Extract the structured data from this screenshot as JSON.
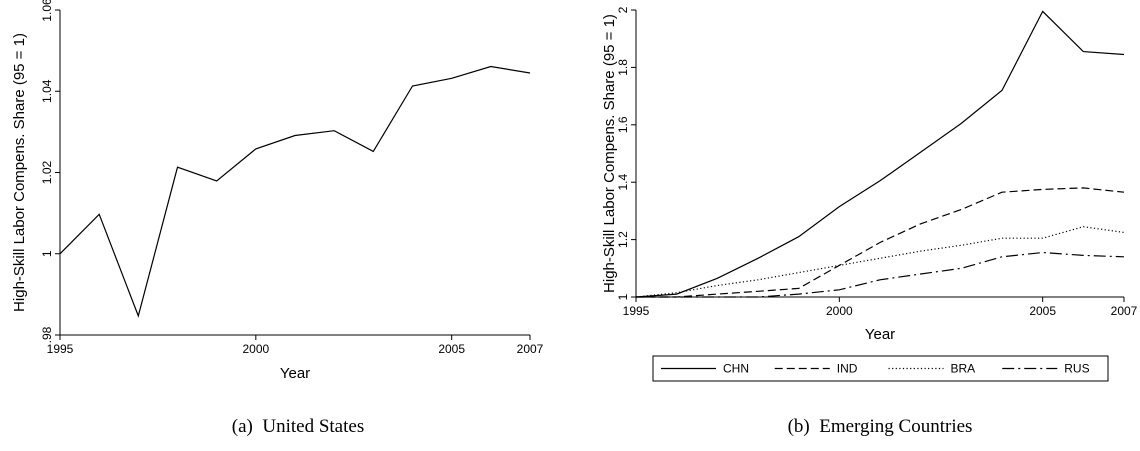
{
  "chart_data": [
    {
      "type": "line",
      "caption": "(a)  United States",
      "xlabel": "Year",
      "ylabel": "High-Skill Labor Compens. Share (95 = 1)",
      "xlim": [
        1995,
        2007
      ],
      "ylim": [
        0.98,
        1.06
      ],
      "xticks": [
        "1995",
        "2000",
        "2005",
        "2007"
      ],
      "yticks": [
        ".98",
        "1",
        "1.02",
        "1.04",
        "1.06"
      ],
      "grid": false,
      "x": [
        1995,
        1996,
        1997,
        1998,
        1999,
        2000,
        2001,
        2002,
        2003,
        2004,
        2005,
        2006,
        2007
      ],
      "series": [
        {
          "values": [
            1.0,
            1.0097,
            0.9847,
            1.0213,
            1.0179,
            1.0258,
            1.0291,
            1.0303,
            1.0252,
            1.0413,
            1.0432,
            1.0461,
            1.0445
          ]
        }
      ]
    },
    {
      "type": "line",
      "caption": "(b)  Emerging Countries",
      "xlabel": "Year",
      "ylabel": "High-Skill Labor Compens. Share (95 = 1)",
      "xlim": [
        1995,
        2007
      ],
      "ylim": [
        1,
        2
      ],
      "xticks": [
        "1995",
        "2000",
        "2005",
        "2007"
      ],
      "yticks": [
        "1",
        "1.2",
        "1.4",
        "1.6",
        "1.8",
        "2"
      ],
      "grid": false,
      "legend_position": "bottom",
      "x": [
        1995,
        1996,
        1997,
        1998,
        1999,
        2000,
        2001,
        2002,
        2003,
        2004,
        2005,
        2006,
        2007
      ],
      "series": [
        {
          "name": "CHN",
          "dash": "solid",
          "values": [
            1.0,
            1.01,
            1.065,
            1.135,
            1.21,
            1.315,
            1.405,
            1.505,
            1.605,
            1.72,
            1.995,
            1.855,
            1.845
          ]
        },
        {
          "name": "IND",
          "dash": "dashed",
          "values": [
            1.0,
            1.0,
            1.01,
            1.02,
            1.03,
            1.11,
            1.19,
            1.255,
            1.305,
            1.365,
            1.375,
            1.38,
            1.365
          ]
        },
        {
          "name": "BRA",
          "dash": "dotted",
          "values": [
            1.0,
            1.015,
            1.04,
            1.06,
            1.085,
            1.11,
            1.135,
            1.16,
            1.18,
            1.205,
            1.205,
            1.245,
            1.225
          ]
        },
        {
          "name": "RUS",
          "dash": "dashdot",
          "values": [
            1.0,
            1.0,
            1.0,
            1.0,
            1.01,
            1.025,
            1.06,
            1.08,
            1.1,
            1.14,
            1.155,
            1.145,
            1.14
          ]
        }
      ]
    }
  ]
}
